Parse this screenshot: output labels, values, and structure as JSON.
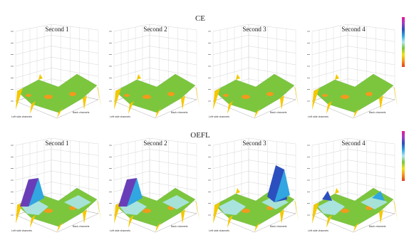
{
  "figure": {
    "sections": [
      {
        "id": "ce",
        "title": "CE",
        "panels": [
          {
            "title": "Second 1",
            "x_axis_label": "Left side channels",
            "y_axis_label": "Back channels",
            "kind": "flat"
          },
          {
            "title": "Second 2",
            "x_axis_label": "Left side channels",
            "y_axis_label": "Back channels",
            "kind": "flat"
          },
          {
            "title": "Second 3",
            "x_axis_label": "Left side channels",
            "y_axis_label": "Back channels",
            "kind": "flat"
          },
          {
            "title": "Second 4",
            "x_axis_label": "Left side channels",
            "y_axis_label": "Back channels",
            "kind": "flat"
          }
        ]
      },
      {
        "id": "oefl",
        "title": "OEFL",
        "panels": [
          {
            "title": "Second 1",
            "x_axis_label": "Left side channels",
            "y_axis_label": "Back channels",
            "kind": "peak-left"
          },
          {
            "title": "Second 2",
            "x_axis_label": "Left side channels",
            "y_axis_label": "Back channels",
            "kind": "peak-left"
          },
          {
            "title": "Second 3",
            "x_axis_label": "Left side channels",
            "y_axis_label": "Back channels",
            "kind": "peak-right"
          },
          {
            "title": "Second 4",
            "x_axis_label": "Left side channels",
            "y_axis_label": "Back channels",
            "kind": "valley"
          }
        ]
      }
    ],
    "colorbar_colors": [
      "#e8189a",
      "#9b3fc4",
      "#2c4fbf",
      "#31a6e0",
      "#aee6f0",
      "#7cc63e",
      "#f0e21c",
      "#f29a1c",
      "#e63a1c"
    ],
    "surface_colors": {
      "low": "#f4c800",
      "mid": "#7cc63e",
      "high": "#aee6f0",
      "higher": "#31a6e0",
      "peak": "#6a3db8"
    }
  },
  "chart_data": [
    {
      "type": "surface3d",
      "group": "CE",
      "title": "Second 1",
      "xlabel": "Left side channels",
      "ylabel": "Back channels"
    },
    {
      "type": "surface3d",
      "group": "CE",
      "title": "Second 2",
      "xlabel": "Left side channels",
      "ylabel": "Back channels"
    },
    {
      "type": "surface3d",
      "group": "CE",
      "title": "Second 3",
      "xlabel": "Left side channels",
      "ylabel": "Back channels"
    },
    {
      "type": "surface3d",
      "group": "CE",
      "title": "Second 4",
      "xlabel": "Left side channels",
      "ylabel": "Back channels"
    },
    {
      "type": "surface3d",
      "group": "OEFL",
      "title": "Second 1",
      "xlabel": "Left side channels",
      "ylabel": "Back channels"
    },
    {
      "type": "surface3d",
      "group": "OEFL",
      "title": "Second 2",
      "xlabel": "Left side channels",
      "ylabel": "Back channels"
    },
    {
      "type": "surface3d",
      "group": "OEFL",
      "title": "Second 3",
      "xlabel": "Left side channels",
      "ylabel": "Back channels"
    },
    {
      "type": "surface3d",
      "group": "OEFL",
      "title": "Second 4",
      "xlabel": "Left side channels",
      "ylabel": "Back channels"
    }
  ]
}
